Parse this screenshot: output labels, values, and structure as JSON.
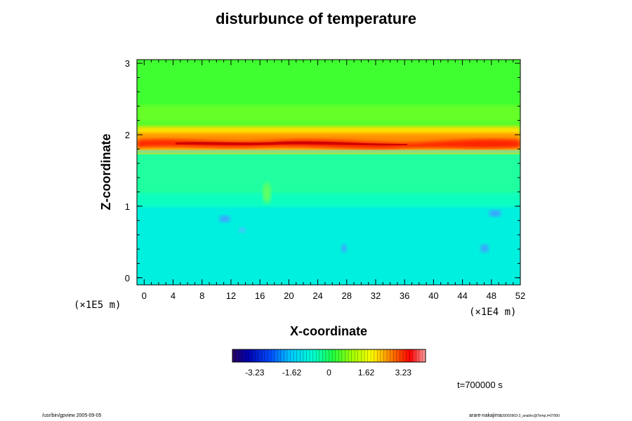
{
  "chart_data": {
    "type": "heatmap",
    "title": "disturbunce of temperature",
    "xlabel": "X-coordinate",
    "ylabel": "Z-coordinate",
    "x_unit": "(×1E4 m)",
    "y_unit": "(×1E5 m)",
    "xlim": [
      -1,
      52
    ],
    "ylim": [
      -0.1,
      3.05
    ],
    "x_ticks": [
      "0",
      "4",
      "8",
      "12",
      "16",
      "20",
      "24",
      "28",
      "32",
      "36",
      "40",
      "44",
      "48",
      "52"
    ],
    "y_ticks": [
      "0",
      "1",
      "2",
      "3"
    ],
    "colorbar": {
      "min": -4.2,
      "max": 4.2,
      "tick_labels": [
        "-3.23",
        "-1.62",
        "0",
        "1.62",
        "3.23"
      ],
      "tick_values": [
        -3.23,
        -1.62,
        0,
        1.62,
        3.23
      ]
    },
    "field_description_levels": [
      {
        "z_range": [
          0.0,
          1.0
        ],
        "value": -0.9
      },
      {
        "z_range": [
          1.0,
          1.75
        ],
        "value": -0.45
      },
      {
        "z_range": [
          1.75,
          2.05
        ],
        "value": 2.6
      },
      {
        "z_range": [
          2.05,
          3.05
        ],
        "value": 0.25
      }
    ]
  },
  "time_label": "t=700000 s",
  "footer_left": "/usr/bin/gpview 2005-09-05",
  "footer_right_main": "arare-nakajima",
  "footer_right_small": "20050903-2_analinc@Temp,t=07000"
}
